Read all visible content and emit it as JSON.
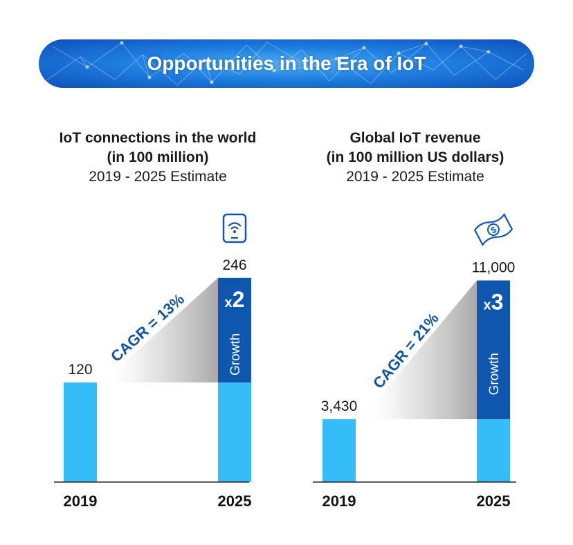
{
  "banner": {
    "title": "Opportunities in the Era of IoT"
  },
  "colors": {
    "bar_light": "#35bdf7",
    "bar_dark": "#0f57ae",
    "axis": "#222222",
    "cagr_text": "#1054a8"
  },
  "chart_data": [
    {
      "type": "bar",
      "title": "IoT connections in the world",
      "subtitle": "(in 100 million)",
      "period": "2019 - 2025 Estimate",
      "icon": "smartphone-wifi-icon",
      "categories": [
        "2019",
        "2025"
      ],
      "values": [
        120,
        246
      ],
      "value_labels": [
        "120",
        "246"
      ],
      "cagr_label": "CAGR = 13%",
      "multiplier_label": "x2",
      "growth_label": "Growth"
    },
    {
      "type": "bar",
      "title": "Global IoT revenue",
      "subtitle": "(in 100 million US dollars)",
      "period": "2019 - 2025 Estimate",
      "icon": "dollar-bill-icon",
      "categories": [
        "2019",
        "2025"
      ],
      "values": [
        3430,
        11000
      ],
      "value_labels": [
        "3,430",
        "11,000"
      ],
      "cagr_label": "CAGR = 21%",
      "multiplier_label": "x3",
      "growth_label": "Growth"
    }
  ]
}
